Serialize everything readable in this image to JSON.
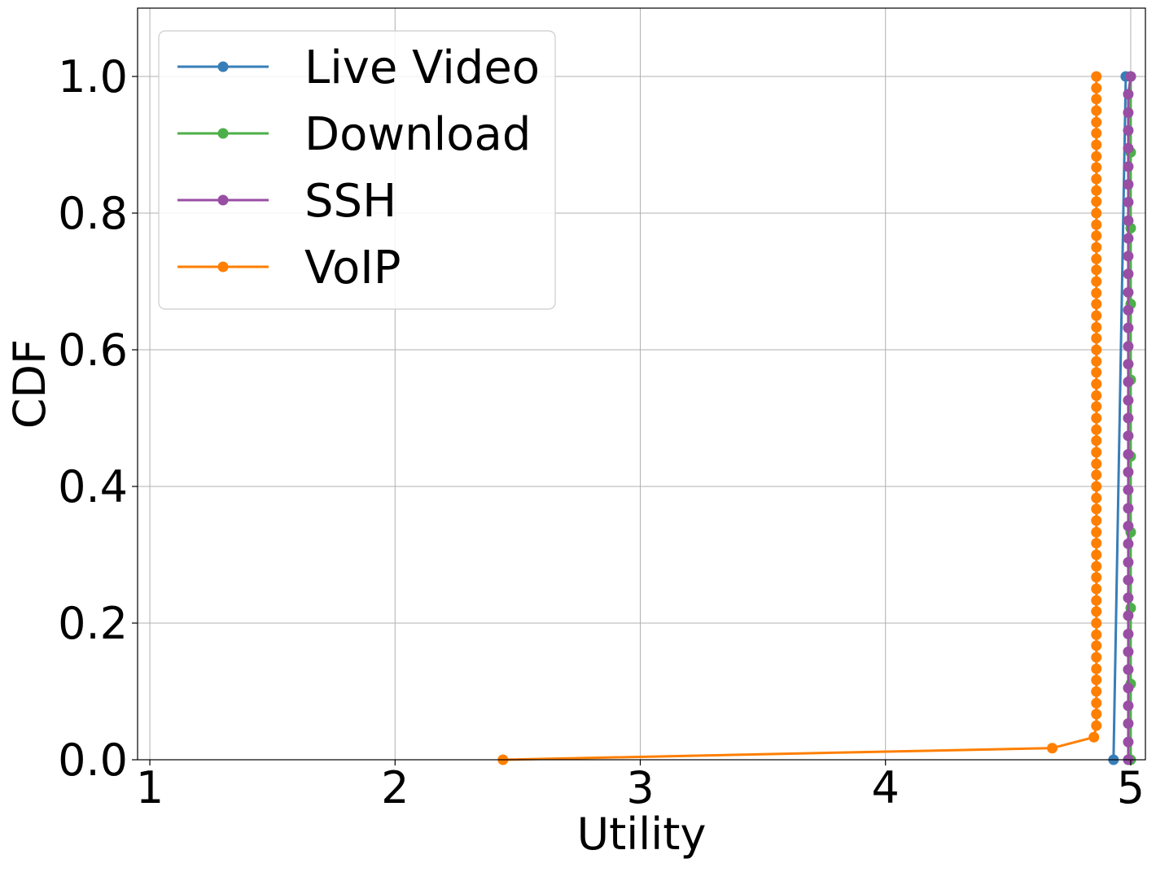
{
  "chart_data": {
    "type": "line",
    "title": "",
    "xlabel": "Utility",
    "ylabel": "CDF",
    "xlim": [
      0.95,
      5.06
    ],
    "ylim": [
      0.0,
      1.1
    ],
    "xticks": [
      1,
      2,
      3,
      4,
      5
    ],
    "xtick_labels": [
      "1",
      "2",
      "3",
      "4",
      "5"
    ],
    "yticks": [
      0.0,
      0.2,
      0.4,
      0.6,
      0.8,
      1.0
    ],
    "ytick_labels": [
      "0.0",
      "0.2",
      "0.4",
      "0.6",
      "0.8",
      "1.0"
    ],
    "grid": true,
    "legend_position": "top-left",
    "series": [
      {
        "name": "Live Video",
        "color": "#377eb8",
        "points": [
          [
            4.93,
            0.0
          ],
          [
            4.98,
            1.0
          ]
        ]
      },
      {
        "name": "Download",
        "color": "#4daf4a",
        "points": [
          [
            5.0,
            0.0
          ],
          [
            5.0,
            0.111
          ],
          [
            5.0,
            0.222
          ],
          [
            5.0,
            0.333
          ],
          [
            5.0,
            0.444
          ],
          [
            5.0,
            0.556
          ],
          [
            5.0,
            0.667
          ],
          [
            5.0,
            0.778
          ],
          [
            5.0,
            0.889
          ],
          [
            5.0,
            1.0
          ]
        ]
      },
      {
        "name": "SSH",
        "color": "#984ea3",
        "points": [
          [
            4.99,
            0.0
          ],
          [
            4.99,
            0.026
          ],
          [
            4.99,
            0.053
          ],
          [
            4.99,
            0.079
          ],
          [
            4.99,
            0.105
          ],
          [
            4.99,
            0.132
          ],
          [
            4.99,
            0.158
          ],
          [
            4.99,
            0.184
          ],
          [
            4.99,
            0.211
          ],
          [
            4.99,
            0.237
          ],
          [
            4.99,
            0.263
          ],
          [
            4.99,
            0.289
          ],
          [
            4.99,
            0.316
          ],
          [
            4.99,
            0.342
          ],
          [
            4.99,
            0.368
          ],
          [
            4.99,
            0.395
          ],
          [
            4.99,
            0.421
          ],
          [
            4.99,
            0.447
          ],
          [
            4.99,
            0.474
          ],
          [
            4.99,
            0.5
          ],
          [
            4.99,
            0.526
          ],
          [
            4.99,
            0.553
          ],
          [
            4.99,
            0.579
          ],
          [
            4.99,
            0.605
          ],
          [
            4.99,
            0.632
          ],
          [
            4.99,
            0.658
          ],
          [
            4.99,
            0.684
          ],
          [
            4.99,
            0.711
          ],
          [
            4.99,
            0.737
          ],
          [
            4.99,
            0.763
          ],
          [
            4.99,
            0.789
          ],
          [
            4.99,
            0.816
          ],
          [
            4.99,
            0.842
          ],
          [
            4.99,
            0.868
          ],
          [
            4.99,
            0.895
          ],
          [
            4.99,
            0.921
          ],
          [
            4.99,
            0.947
          ],
          [
            4.99,
            0.974
          ],
          [
            5.0,
            1.0
          ]
        ]
      },
      {
        "name": "VoIP",
        "color": "#ff7f00",
        "points": [
          [
            2.44,
            0.0
          ],
          [
            4.68,
            0.017
          ],
          [
            4.85,
            0.033
          ],
          [
            4.86,
            0.05
          ],
          [
            4.86,
            0.067
          ],
          [
            4.86,
            0.083
          ],
          [
            4.86,
            0.1
          ],
          [
            4.86,
            0.117
          ],
          [
            4.86,
            0.133
          ],
          [
            4.86,
            0.15
          ],
          [
            4.86,
            0.167
          ],
          [
            4.86,
            0.183
          ],
          [
            4.86,
            0.2
          ],
          [
            4.86,
            0.217
          ],
          [
            4.86,
            0.233
          ],
          [
            4.86,
            0.25
          ],
          [
            4.86,
            0.267
          ],
          [
            4.86,
            0.283
          ],
          [
            4.86,
            0.3
          ],
          [
            4.86,
            0.317
          ],
          [
            4.86,
            0.333
          ],
          [
            4.86,
            0.35
          ],
          [
            4.86,
            0.367
          ],
          [
            4.86,
            0.383
          ],
          [
            4.86,
            0.4
          ],
          [
            4.86,
            0.417
          ],
          [
            4.86,
            0.433
          ],
          [
            4.86,
            0.45
          ],
          [
            4.86,
            0.467
          ],
          [
            4.86,
            0.483
          ],
          [
            4.86,
            0.5
          ],
          [
            4.86,
            0.517
          ],
          [
            4.86,
            0.533
          ],
          [
            4.86,
            0.55
          ],
          [
            4.86,
            0.567
          ],
          [
            4.86,
            0.583
          ],
          [
            4.86,
            0.6
          ],
          [
            4.86,
            0.617
          ],
          [
            4.86,
            0.633
          ],
          [
            4.86,
            0.65
          ],
          [
            4.86,
            0.667
          ],
          [
            4.86,
            0.683
          ],
          [
            4.86,
            0.7
          ],
          [
            4.86,
            0.717
          ],
          [
            4.86,
            0.733
          ],
          [
            4.86,
            0.75
          ],
          [
            4.86,
            0.767
          ],
          [
            4.86,
            0.783
          ],
          [
            4.86,
            0.8
          ],
          [
            4.86,
            0.817
          ],
          [
            4.86,
            0.833
          ],
          [
            4.86,
            0.85
          ],
          [
            4.86,
            0.867
          ],
          [
            4.86,
            0.883
          ],
          [
            4.86,
            0.9
          ],
          [
            4.86,
            0.917
          ],
          [
            4.86,
            0.933
          ],
          [
            4.86,
            0.95
          ],
          [
            4.86,
            0.967
          ],
          [
            4.86,
            0.983
          ],
          [
            4.86,
            1.0
          ]
        ]
      }
    ]
  }
}
